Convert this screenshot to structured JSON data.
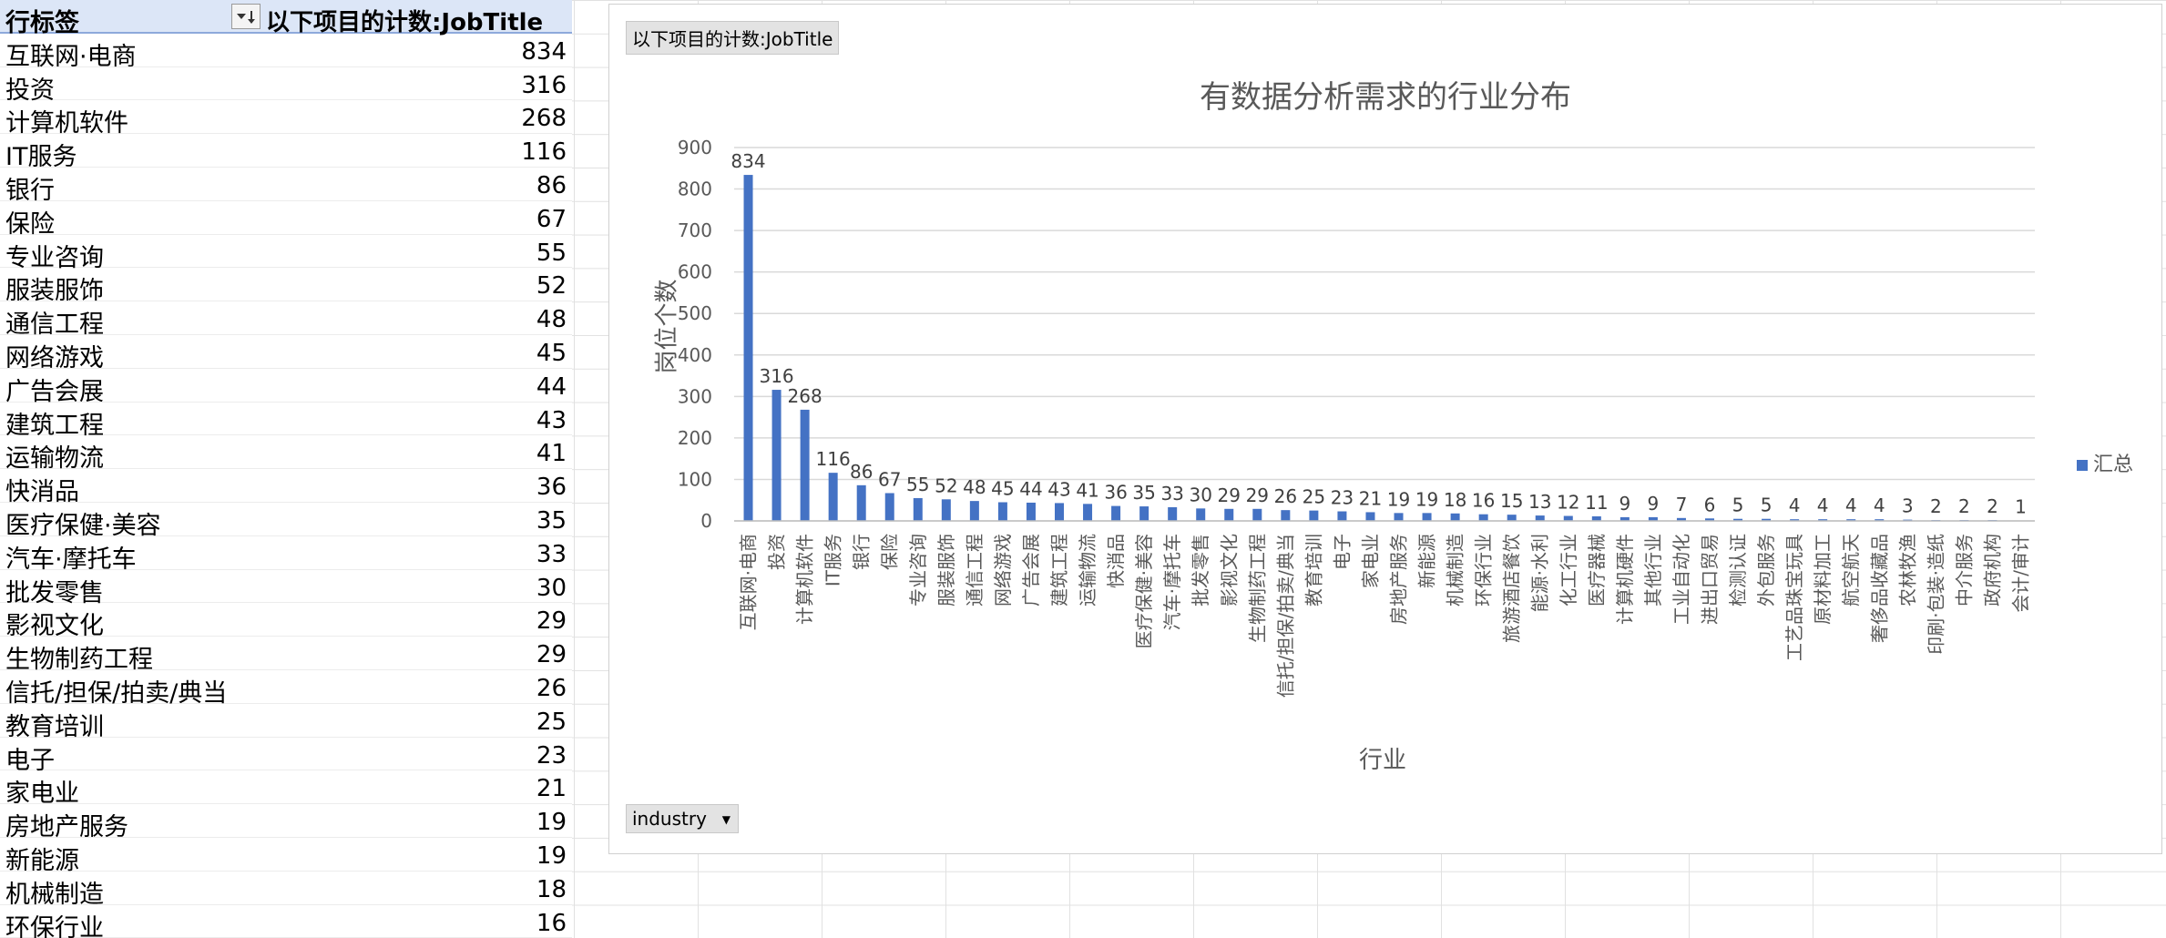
{
  "pivot": {
    "header_label": "行标签",
    "header_count": "以下项目的计数:JobTitle",
    "rows": [
      {
        "label": "互联网·电商",
        "count": "834"
      },
      {
        "label": "投资",
        "count": "316"
      },
      {
        "label": "计算机软件",
        "count": "268"
      },
      {
        "label": "IT服务",
        "count": "116"
      },
      {
        "label": "银行",
        "count": "86"
      },
      {
        "label": "保险",
        "count": "67"
      },
      {
        "label": "专业咨询",
        "count": "55"
      },
      {
        "label": "服装服饰",
        "count": "52"
      },
      {
        "label": "通信工程",
        "count": "48"
      },
      {
        "label": "网络游戏",
        "count": "45"
      },
      {
        "label": "广告会展",
        "count": "44"
      },
      {
        "label": "建筑工程",
        "count": "43"
      },
      {
        "label": "运输物流",
        "count": "41"
      },
      {
        "label": "快消品",
        "count": "36"
      },
      {
        "label": "医疗保健·美容",
        "count": "35"
      },
      {
        "label": "汽车·摩托车",
        "count": "33"
      },
      {
        "label": "批发零售",
        "count": "30"
      },
      {
        "label": "影视文化",
        "count": "29"
      },
      {
        "label": "生物制药工程",
        "count": "29"
      },
      {
        "label": "信托/担保/拍卖/典当",
        "count": "26"
      },
      {
        "label": "教育培训",
        "count": "25"
      },
      {
        "label": "电子",
        "count": "23"
      },
      {
        "label": "家电业",
        "count": "21"
      },
      {
        "label": "房地产服务",
        "count": "19"
      },
      {
        "label": "新能源",
        "count": "19"
      },
      {
        "label": "机械制造",
        "count": "18"
      },
      {
        "label": "环保行业",
        "count": "16"
      }
    ]
  },
  "chart": {
    "value_field_button": "以下项目的计数:JobTitle",
    "axis_field_button": "industry",
    "legend_label": "汇总",
    "colors": {
      "bar": "#4472c4",
      "grid": "#d9d9d9",
      "text": "#595959"
    }
  },
  "chart_data": {
    "type": "bar",
    "title": "有数据分析需求的行业分布",
    "xlabel": "行业",
    "ylabel": "岗位个数",
    "ylim": [
      0,
      900
    ],
    "yticks": [
      0,
      100,
      200,
      300,
      400,
      500,
      600,
      700,
      800,
      900
    ],
    "grid": true,
    "legend_position": "right",
    "categories": [
      "互联网·电商",
      "投资",
      "计算机软件",
      "IT服务",
      "银行",
      "保险",
      "专业咨询",
      "服装服饰",
      "通信工程",
      "网络游戏",
      "广告会展",
      "建筑工程",
      "运输物流",
      "快消品",
      "医疗保健·美容",
      "汽车·摩托车",
      "批发零售",
      "影视文化",
      "生物制药工程",
      "信托/担保/拍卖/典当",
      "教育培训",
      "电子",
      "家电业",
      "房地产服务",
      "新能源",
      "机械制造",
      "环保行业",
      "旅游酒店餐饮",
      "能源·水利",
      "化工行业",
      "医疗器械",
      "计算机硬件",
      "其他行业",
      "工业自动化",
      "进出口贸易",
      "检测认证",
      "外包服务",
      "工艺品珠宝玩具",
      "原材料加工",
      "航空航天",
      "奢侈品收藏品",
      "农林牧渔",
      "印刷·包装·造纸",
      "中介服务",
      "政府机构",
      "会计/审计"
    ],
    "series": [
      {
        "name": "汇总",
        "values": [
          834,
          316,
          268,
          116,
          86,
          67,
          55,
          52,
          48,
          45,
          44,
          43,
          41,
          36,
          35,
          33,
          30,
          29,
          29,
          26,
          25,
          23,
          21,
          19,
          19,
          18,
          16,
          15,
          13,
          12,
          11,
          9,
          9,
          7,
          6,
          5,
          5,
          4,
          4,
          4,
          4,
          3,
          2,
          2,
          2,
          1
        ]
      }
    ]
  }
}
